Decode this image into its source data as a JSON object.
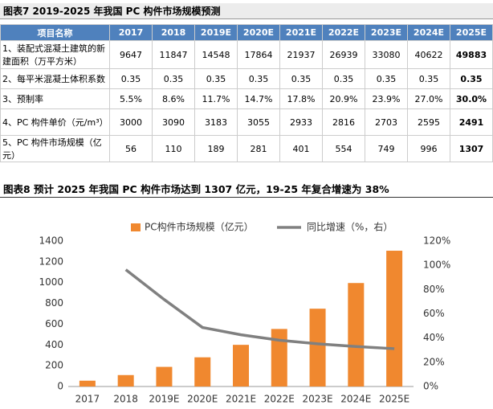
{
  "table_title": "图表7    2019-2025 年我国 PC 构件市场规模预测",
  "table": {
    "header": [
      "项目名称",
      "2017",
      "2018",
      "2019E",
      "2020E",
      "2021E",
      "2022E",
      "2023E",
      "2024E",
      "2025E"
    ],
    "rows": [
      [
        "1、装配式混凝土建筑的新建面积（万平方米）",
        "9647",
        "11847",
        "14548",
        "17864",
        "21937",
        "26939",
        "33080",
        "40622",
        "49883"
      ],
      [
        "2、每平米混凝土体积系数",
        "0.35",
        "0.35",
        "0.35",
        "0.35",
        "0.35",
        "0.35",
        "0.35",
        "0.35",
        "0.35"
      ],
      [
        "3、预制率",
        "5.5%",
        "8.6%",
        "11.7%",
        "14.7%",
        "17.8%",
        "20.9%",
        "23.9%",
        "27.0%",
        "30.0%"
      ],
      [
        "4、PC 构件单价（元/m³）",
        "3000",
        "3090",
        "3183",
        "3055",
        "2933",
        "2816",
        "2703",
        "2595",
        "2491"
      ],
      [
        "5、PC 构件市场规模（亿元）",
        "56",
        "110",
        "189",
        "281",
        "401",
        "554",
        "749",
        "996",
        "1307"
      ]
    ]
  },
  "chart_data": {
    "type": "bar-line",
    "title": "图表8    预计 2025 年我国 PC 构件市场达到 1307 亿元，19-25 年复合增速为 38%",
    "categories": [
      "2017",
      "2018",
      "2019E",
      "2020E",
      "2021E",
      "2022E",
      "2023E",
      "2024E",
      "2025E"
    ],
    "series": [
      {
        "name": "PC构件市场规模（亿元）",
        "type": "bar",
        "color": "#f0882f",
        "values": [
          56,
          110,
          189,
          281,
          401,
          554,
          749,
          996,
          1307
        ]
      },
      {
        "name": "同比增速（%，右）",
        "type": "line",
        "axis": "y2",
        "color": "#808080",
        "values": [
          null,
          96.4,
          71.8,
          48.7,
          42.7,
          38.2,
          35.2,
          33.0,
          31.2
        ]
      }
    ],
    "ylim": [
      0,
      1400
    ],
    "yticks": [
      0,
      200,
      400,
      600,
      800,
      1000,
      1200,
      1400
    ],
    "y2lim": [
      0,
      120
    ],
    "y2ticks": [
      {
        "value": 0,
        "label": "0%"
      },
      {
        "value": 20,
        "label": "20%"
      },
      {
        "value": 40,
        "label": "40%"
      },
      {
        "value": 60,
        "label": "60%"
      },
      {
        "value": 80,
        "label": "80%"
      },
      {
        "value": 100,
        "label": "100%"
      },
      {
        "value": 120,
        "label": "120%"
      }
    ],
    "legend": "top"
  }
}
